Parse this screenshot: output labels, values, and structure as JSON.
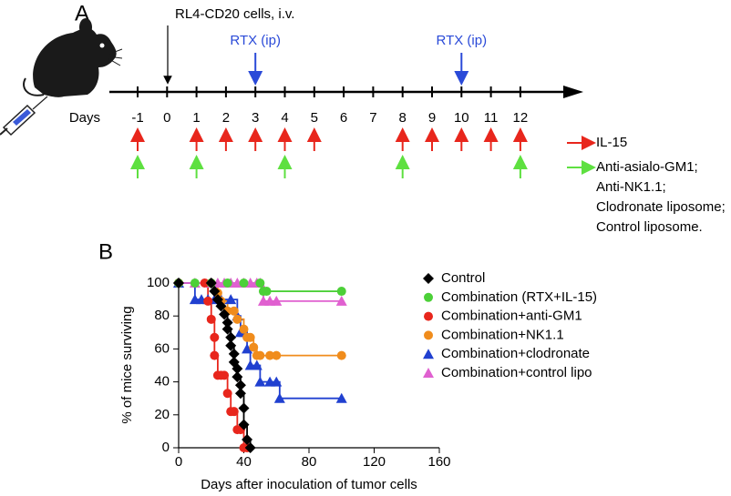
{
  "panel_a": {
    "label": "A",
    "injection": "RL4-CD20 cells, i.v.",
    "rtx": [
      "RTX (ip)",
      "RTX (ip)"
    ],
    "axis_label": "Days",
    "days": [
      "-1",
      "0",
      "1",
      "2",
      "3",
      "4",
      "5",
      "6",
      "7",
      "8",
      "9",
      "10",
      "11",
      "12"
    ],
    "il15_label": "IL-15",
    "depletion_labels": [
      "Anti-asialo-GM1;",
      "Anti-NK1.1;",
      "Clodronate liposome;",
      "Control liposome."
    ]
  },
  "chart_data": {
    "type": "survival",
    "panel_label": "B",
    "x_label": "Days after inoculation of tumor cells",
    "y_label": "% of mice surviving",
    "xlim": [
      0,
      160
    ],
    "xticks": [
      0,
      40,
      80,
      120,
      160
    ],
    "ylim": [
      0,
      100
    ],
    "yticks": [
      0,
      20,
      40,
      60,
      80,
      100
    ],
    "series": [
      {
        "name": "Control",
        "color": "#000000",
        "marker": "diamond",
        "x": [
          0,
          20,
          22,
          24,
          26,
          28,
          30,
          30,
          32,
          32,
          34,
          34,
          36,
          36,
          38,
          38,
          40,
          40,
          42,
          44
        ],
        "values": [
          100,
          100,
          95,
          90,
          86,
          81,
          76,
          72,
          67,
          62,
          57,
          52,
          48,
          43,
          38,
          33,
          24,
          14,
          5,
          0
        ]
      },
      {
        "name": "Combination (RTX+IL-15)",
        "color": "#4cd038",
        "marker": "circle",
        "x": [
          0,
          10,
          20,
          30,
          40,
          50,
          52,
          54,
          100
        ],
        "values": [
          100,
          100,
          100,
          100,
          100,
          100,
          95,
          95,
          95
        ]
      },
      {
        "name": "Combination+anti-GM1",
        "color": "#e8261c",
        "marker": "circle",
        "x": [
          0,
          16,
          18,
          20,
          22,
          22,
          24,
          26,
          28,
          30,
          32,
          34,
          36,
          38,
          40,
          42
        ],
        "values": [
          100,
          100,
          89,
          78,
          67,
          56,
          44,
          44,
          44,
          33,
          22,
          22,
          11,
          11,
          0,
          0
        ]
      },
      {
        "name": "Combination+NK1.1",
        "color": "#f08c1c",
        "marker": "circle",
        "x": [
          0,
          20,
          24,
          26,
          30,
          34,
          36,
          40,
          42,
          44,
          46,
          48,
          50,
          56,
          60,
          100
        ],
        "values": [
          100,
          100,
          94,
          89,
          83,
          83,
          78,
          72,
          67,
          67,
          61,
          56,
          56,
          56,
          56,
          56
        ]
      },
      {
        "name": "Combination+clodronate",
        "color": "#2040d0",
        "marker": "triangle",
        "x": [
          0,
          10,
          14,
          18,
          22,
          26,
          32,
          36,
          38,
          40,
          42,
          44,
          48,
          50,
          56,
          60,
          62,
          100
        ],
        "values": [
          100,
          90,
          90,
          90,
          90,
          90,
          90,
          80,
          70,
          70,
          60,
          50,
          50,
          40,
          40,
          40,
          30,
          30
        ]
      },
      {
        "name": "Combination+control lipo",
        "color": "#e060d0",
        "marker": "triangle",
        "x": [
          0,
          10,
          20,
          24,
          28,
          32,
          36,
          40,
          44,
          48,
          50,
          52,
          56,
          60,
          100
        ],
        "values": [
          100,
          100,
          100,
          100,
          100,
          100,
          100,
          100,
          100,
          100,
          100,
          89,
          89,
          89,
          89
        ]
      }
    ]
  }
}
